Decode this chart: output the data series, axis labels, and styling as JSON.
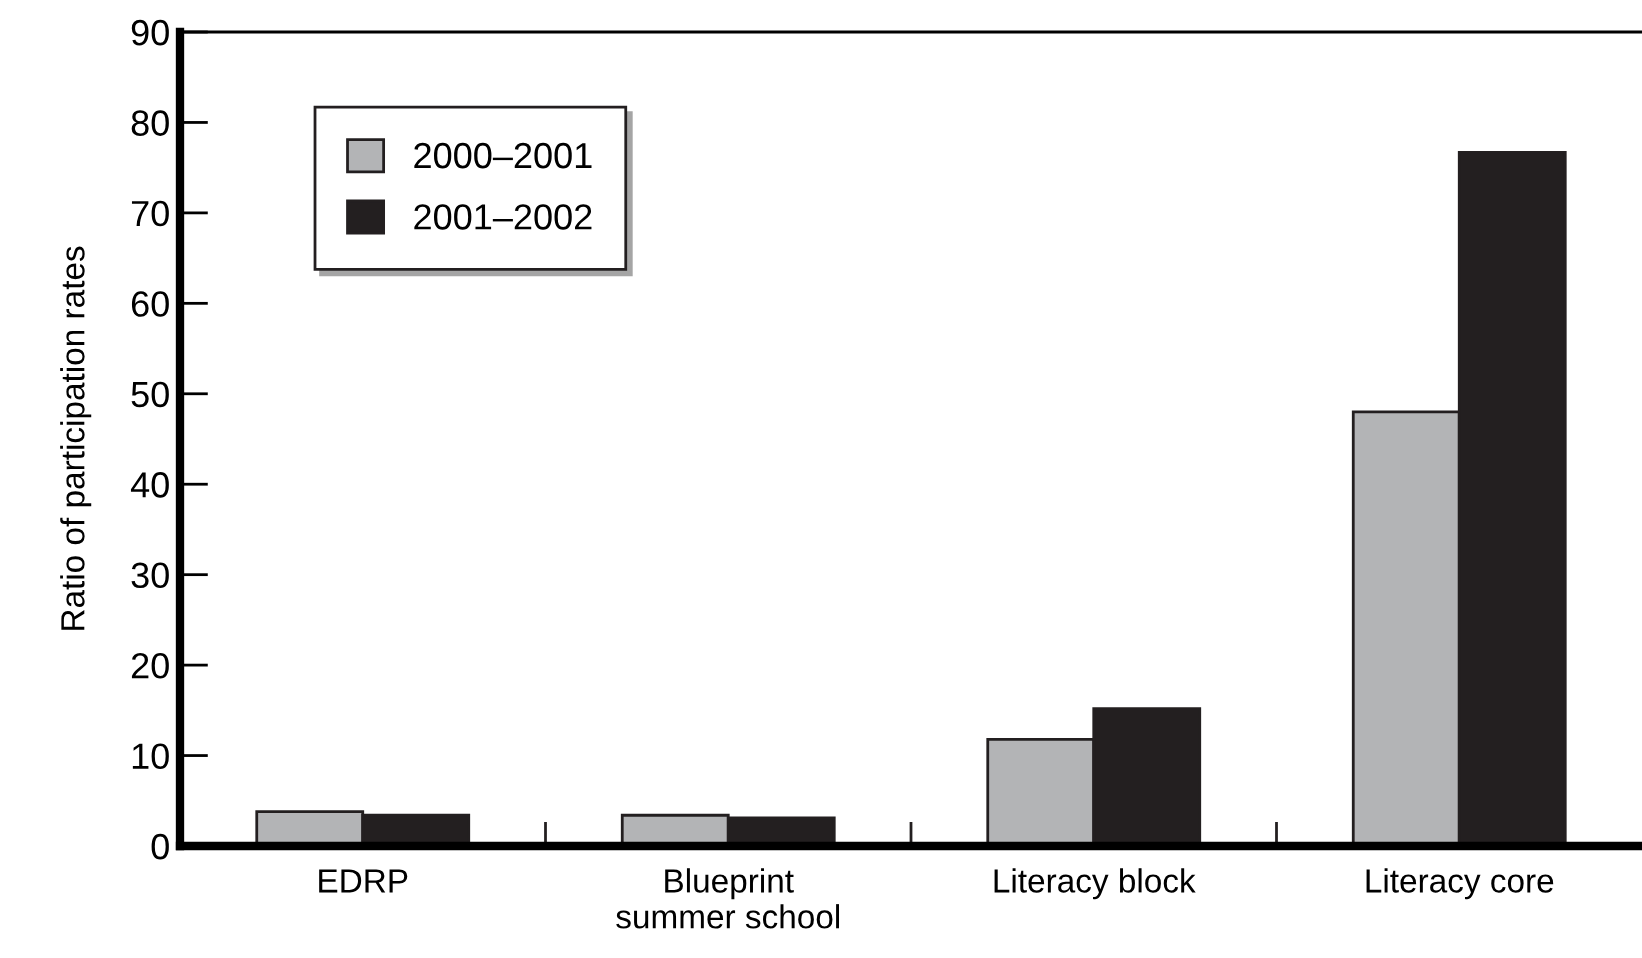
{
  "chart_data": {
    "type": "bar",
    "ylabel": "Ratio of participation rates",
    "categories": [
      "EDRP",
      "Blueprint\nsummer school",
      "Literacy block",
      "Literacy core"
    ],
    "series": [
      {
        "name": "2000–2001",
        "color": "#b3b4b6",
        "values": [
          3.8,
          3.4,
          11.8,
          48
        ]
      },
      {
        "name": "2001–2002",
        "color": "#231f20",
        "values": [
          3.4,
          3.1,
          15.2,
          76.7
        ]
      }
    ],
    "ylim": [
      0,
      90
    ],
    "yticks": [
      0,
      10,
      20,
      30,
      40,
      50,
      60,
      70,
      80,
      90
    ],
    "grid": false,
    "legend": "top left"
  }
}
